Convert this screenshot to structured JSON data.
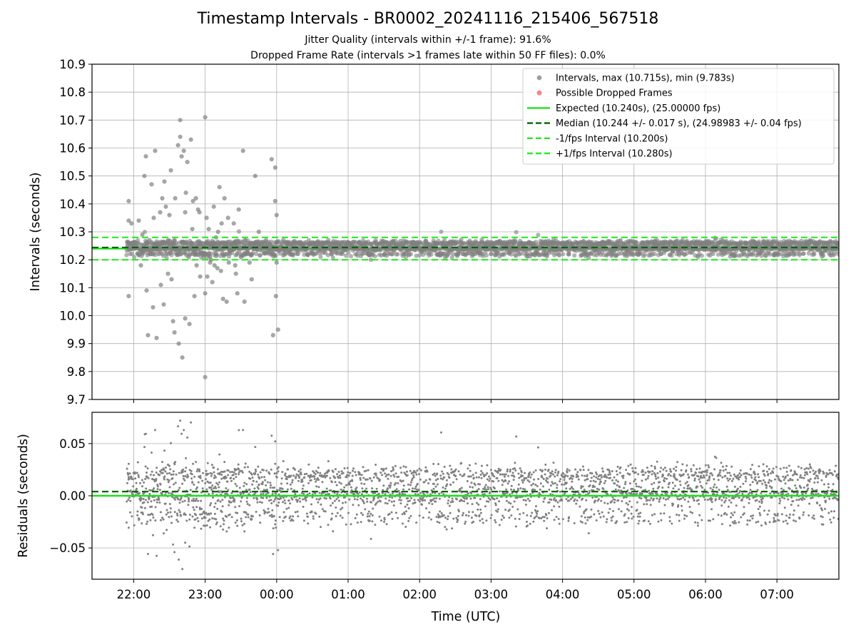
{
  "title": "Timestamp Intervals - BR0002_20241116_215406_567518",
  "subtitle_1": "Jitter Quality (intervals within +/-1 frame): 91.6%",
  "subtitle_2": "Dropped Frame Rate (intervals >1 frames late within 50 FF files): 0.0%",
  "colors": {
    "points": "#808080",
    "dropped": "#ff5555",
    "expected": "#22dd22",
    "median": "#006400",
    "bound": "#22ee22",
    "grid": "#b0b0b0"
  },
  "chart_data": [
    {
      "type": "scatter",
      "panel": "intervals",
      "ylabel": "Intervals (seconds)",
      "ylim": [
        9.7,
        10.9
      ],
      "yticks": [
        "9.7",
        "9.8",
        "9.9",
        "10.0",
        "10.1",
        "10.2",
        "10.3",
        "10.4",
        "10.5",
        "10.6",
        "10.7",
        "10.8",
        "10.9"
      ],
      "grid": true,
      "legend_position": "top-right",
      "legend": [
        {
          "label": "Intervals, max (10.715s), min (9.783s)",
          "marker": "point",
          "color": "#808080"
        },
        {
          "label": "Possible Dropped Frames",
          "marker": "point",
          "color": "#ff5555"
        },
        {
          "label": "Expected (10.240s), (25.00000 fps)",
          "marker": "solid",
          "color": "#22dd22"
        },
        {
          "label": "Median (10.244 +/- 0.017 s), (24.98983 +/- 0.04 fps)",
          "marker": "dashed",
          "color": "#006400"
        },
        {
          "label": "-1/fps Interval (10.200s)",
          "marker": "dashed",
          "color": "#22ee22"
        },
        {
          "label": "+1/fps Interval (10.280s)",
          "marker": "dashed",
          "color": "#22ee22"
        }
      ],
      "reference_lines": {
        "expected": 10.24,
        "median": 10.244,
        "lower": 10.2,
        "upper": 10.28
      },
      "stats": {
        "max": 10.715,
        "min": 9.783,
        "count": 2772
      },
      "outliers": [
        [
          21.93,
          10.41
        ],
        [
          21.93,
          10.34
        ],
        [
          21.93,
          10.07
        ],
        [
          21.97,
          10.33
        ],
        [
          22.02,
          10.24
        ],
        [
          22.07,
          10.34
        ],
        [
          22.1,
          10.18
        ],
        [
          22.12,
          10.29
        ],
        [
          22.15,
          10.5
        ],
        [
          22.17,
          10.57
        ],
        [
          22.18,
          10.09
        ],
        [
          22.2,
          9.93
        ],
        [
          22.22,
          10.27
        ],
        [
          22.25,
          10.47
        ],
        [
          22.27,
          10.03
        ],
        [
          22.28,
          10.35
        ],
        [
          22.3,
          10.59
        ],
        [
          22.32,
          9.92
        ],
        [
          22.35,
          10.22
        ],
        [
          22.37,
          10.37
        ],
        [
          22.38,
          10.11
        ],
        [
          22.4,
          10.42
        ],
        [
          22.42,
          10.04
        ],
        [
          22.43,
          10.48
        ],
        [
          22.45,
          10.39
        ],
        [
          22.48,
          10.15
        ],
        [
          22.5,
          10.36
        ],
        [
          22.52,
          10.52
        ],
        [
          22.53,
          10.13
        ],
        [
          22.55,
          9.98
        ],
        [
          22.57,
          9.94
        ],
        [
          22.58,
          10.42
        ],
        [
          22.62,
          10.61
        ],
        [
          22.63,
          9.9
        ],
        [
          22.65,
          10.7
        ],
        [
          22.65,
          10.64
        ],
        [
          22.67,
          10.57
        ],
        [
          22.68,
          9.85
        ],
        [
          22.7,
          10.59
        ],
        [
          22.72,
          10.37
        ],
        [
          22.72,
          9.99
        ],
        [
          22.73,
          10.44
        ],
        [
          22.75,
          10.55
        ],
        [
          22.77,
          10.21
        ],
        [
          22.78,
          9.97
        ],
        [
          22.8,
          10.63
        ],
        [
          22.82,
          10.31
        ],
        [
          22.83,
          10.41
        ],
        [
          22.85,
          10.07
        ],
        [
          22.87,
          10.42
        ],
        [
          22.88,
          10.18
        ],
        [
          22.9,
          10.38
        ],
        [
          22.92,
          10.37
        ],
        [
          22.93,
          10.14
        ],
        [
          23.0,
          10.71
        ],
        [
          23.0,
          9.78
        ],
        [
          23.0,
          10.08
        ],
        [
          23.02,
          10.35
        ],
        [
          23.03,
          10.14
        ],
        [
          23.05,
          10.31
        ],
        [
          23.07,
          10.19
        ],
        [
          23.08,
          10.2
        ],
        [
          23.1,
          10.12
        ],
        [
          23.12,
          10.39
        ],
        [
          23.13,
          10.18
        ],
        [
          23.15,
          10.28
        ],
        [
          23.17,
          10.17
        ],
        [
          23.18,
          10.3
        ],
        [
          23.2,
          10.46
        ],
        [
          23.22,
          10.16
        ],
        [
          23.23,
          10.33
        ],
        [
          23.25,
          10.06
        ],
        [
          23.27,
          10.42
        ],
        [
          23.28,
          10.25
        ],
        [
          23.3,
          10.05
        ],
        [
          23.32,
          10.35
        ],
        [
          23.33,
          10.19
        ],
        [
          23.35,
          10.23
        ],
        [
          23.4,
          10.33
        ],
        [
          23.42,
          10.18
        ],
        [
          23.43,
          10.15
        ],
        [
          23.45,
          10.08
        ],
        [
          23.47,
          10.38
        ],
        [
          23.5,
          10.21
        ],
        [
          23.53,
          10.59
        ],
        [
          23.55,
          10.05
        ],
        [
          23.58,
          10.26
        ],
        [
          23.62,
          10.19
        ],
        [
          23.65,
          10.13
        ],
        [
          23.7,
          10.5
        ],
        [
          23.75,
          10.3
        ],
        [
          23.85,
          10.27
        ],
        [
          23.93,
          10.56
        ],
        [
          23.95,
          9.93
        ],
        [
          23.98,
          10.53
        ],
        [
          23.98,
          10.41
        ],
        [
          23.99,
          10.07
        ],
        [
          24.0,
          10.36
        ],
        [
          24.0,
          10.19
        ],
        [
          24.02,
          9.95
        ]
      ]
    },
    {
      "type": "scatter",
      "panel": "residuals",
      "ylabel": "Residuals (seconds)",
      "xlabel": "Time (UTC)",
      "ylim": [
        -0.08,
        0.08
      ],
      "yticks": [
        "−0.05",
        "0.00",
        "0.05"
      ],
      "xticks": [
        "22:00",
        "23:00",
        "00:00",
        "01:00",
        "02:00",
        "03:00",
        "04:00",
        "05:00",
        "06:00",
        "07:00"
      ],
      "xlim": [
        "21:25",
        "07:52"
      ],
      "grid": true,
      "reference_lines": {
        "zero": 0.0,
        "median_offset": 0.004
      }
    }
  ]
}
